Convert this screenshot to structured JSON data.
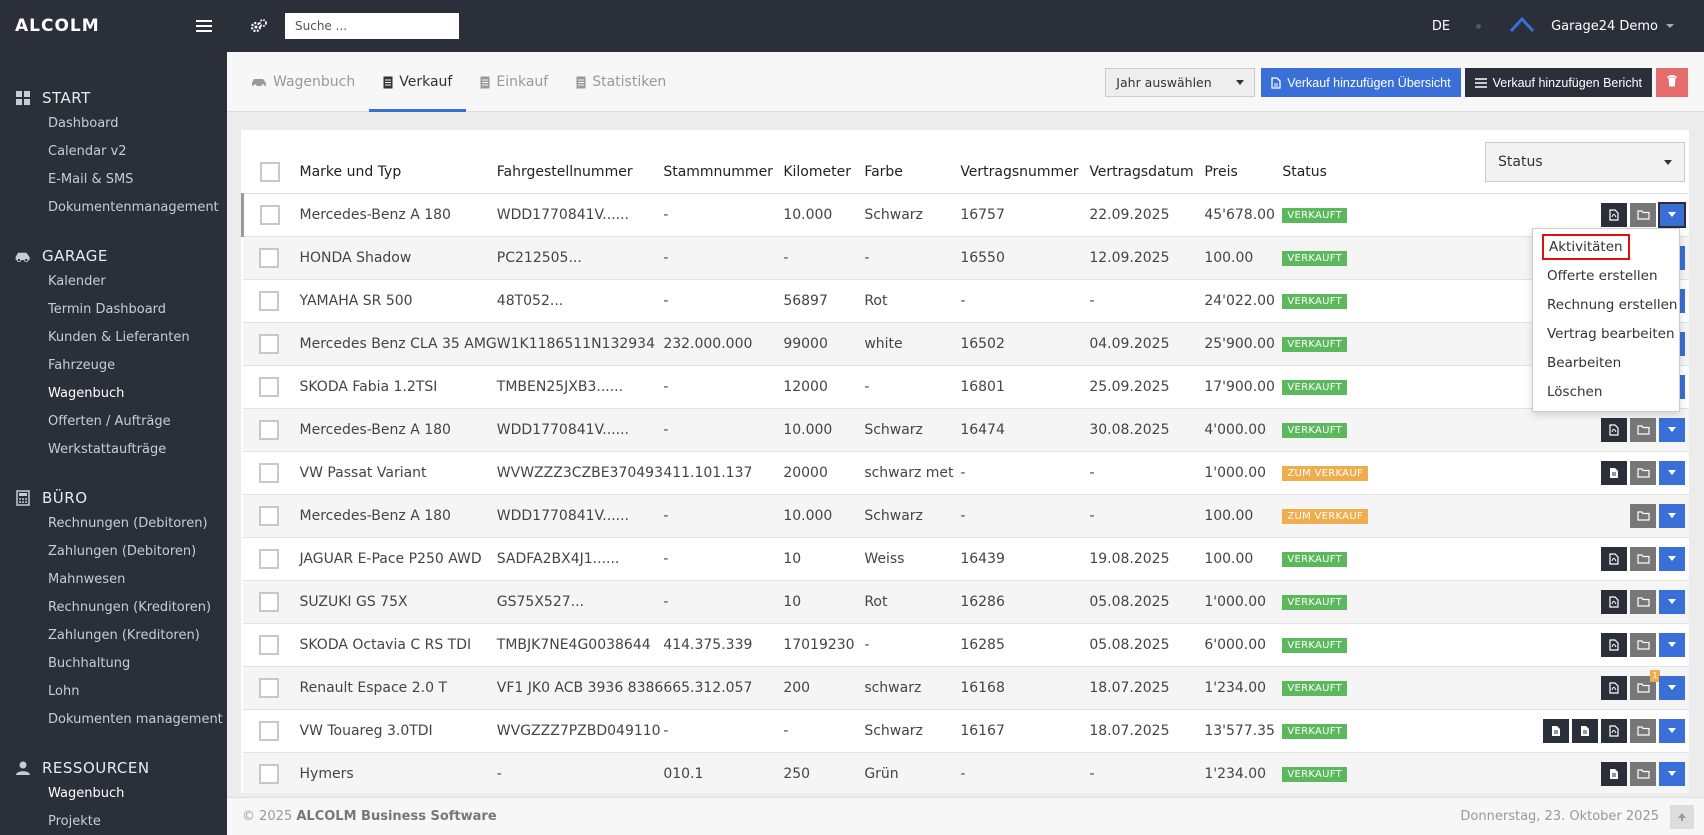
{
  "app": {
    "brand": "ALCOLM"
  },
  "topbar": {
    "search_placeholder": "Suche ...",
    "lang": "DE",
    "user": "Garage24 Demo"
  },
  "sidebar": {
    "sections": [
      {
        "title": "START",
        "icon": "grid-icon",
        "items": [
          "Dashboard",
          "Calendar v2",
          "E-Mail & SMS",
          "Dokumentenmanagement"
        ]
      },
      {
        "title": "GARAGE",
        "icon": "car-icon",
        "items": [
          "Kalender",
          "Termin Dashboard",
          "Kunden & Lieferanten",
          "Fahrzeuge",
          "Wagenbuch",
          "Offerten / Aufträge",
          "Werkstattaufträge"
        ]
      },
      {
        "title": "BÜRO",
        "icon": "calculator-icon",
        "items": [
          "Rechnungen (Debitoren)",
          "Zahlungen (Debitoren)",
          "Mahnwesen",
          "Rechnungen (Kreditoren)",
          "Zahlungen (Kreditoren)",
          "Buchhaltung",
          "Lohn",
          "Dokumenten management"
        ]
      },
      {
        "title": "RESSOURCEN",
        "icon": "user-icon",
        "items": [
          "Wagenbuch",
          "Projekte"
        ]
      }
    ]
  },
  "tabs": [
    {
      "label": "Wagenbuch",
      "icon": "car-icon"
    },
    {
      "label": "Verkauf",
      "icon": "document-icon"
    },
    {
      "label": "Einkauf",
      "icon": "document-icon"
    },
    {
      "label": "Statistiken",
      "icon": "document-icon"
    }
  ],
  "actions": {
    "year_select": "Jahr auswählen",
    "add_overview": "Verkauf hinzufügen Übersicht",
    "add_report": "Verkauf hinzufügen Bericht"
  },
  "table": {
    "status_filter": "Status",
    "columns": [
      "Marke und Typ",
      "Fahrgestellnummer",
      "Stammnummer",
      "Kilometer",
      "Farbe",
      "Vertragsnummer",
      "Vertragsdatum",
      "Preis",
      "Status"
    ],
    "rows": [
      {
        "c": [
          "Mercedes-Benz A 180",
          "WDD1770841V......",
          "-",
          "10.000",
          "Schwarz",
          "16757",
          "22.09.2025",
          "45'678.00"
        ],
        "status": "VERKAUFT",
        "color": "#5cb85c"
      },
      {
        "c": [
          "HONDA Shadow",
          "PC212505...",
          "-",
          "-",
          "-",
          "16550",
          "12.09.2025",
          "100.00"
        ],
        "status": "VERKAUFT",
        "color": "#5cb85c"
      },
      {
        "c": [
          "YAMAHA SR 500",
          "48T052...",
          "-",
          "56897",
          "Rot",
          "-",
          "-",
          "24'022.00"
        ],
        "status": "VERKAUFT",
        "color": "#5cb85c"
      },
      {
        "c": [
          "Mercedes Benz CLA 35 AMG",
          "W1K1186511N132934",
          "232.000.000",
          "99000",
          "white",
          "16502",
          "04.09.2025",
          "25'900.00"
        ],
        "status": "VERKAUFT",
        "color": "#5cb85c"
      },
      {
        "c": [
          "SKODA Fabia 1.2TSI",
          "TMBEN25JXB3......",
          "-",
          "12000",
          "-",
          "16801",
          "25.09.2025",
          "17'900.00"
        ],
        "status": "VERKAUFT",
        "color": "#5cb85c"
      },
      {
        "c": [
          "Mercedes-Benz A 180",
          "WDD1770841V......",
          "-",
          "10.000",
          "Schwarz",
          "16474",
          "30.08.2025",
          "4'000.00"
        ],
        "status": "VERKAUFT",
        "color": "#5cb85c"
      },
      {
        "c": [
          "VW Passat Variant",
          "WVWZZZ3CZBE370493",
          "411.101.137",
          "20000",
          "schwarz met",
          "-",
          "-",
          "1'000.00"
        ],
        "status": "ZUM VERKAUF",
        "color": "#f0ad4e"
      },
      {
        "c": [
          "Mercedes-Benz A 180",
          "WDD1770841V......",
          "-",
          "10.000",
          "Schwarz",
          "-",
          "-",
          "100.00"
        ],
        "status": "ZUM VERKAUF",
        "color": "#f0ad4e"
      },
      {
        "c": [
          "JAGUAR E-Pace P250 AWD",
          "SADFA2BX4J1......",
          "-",
          "10",
          "Weiss",
          "16439",
          "19.08.2025",
          "100.00"
        ],
        "status": "VERKAUFT",
        "color": "#5cb85c"
      },
      {
        "c": [
          "SUZUKI GS 75X",
          "GS75X527...",
          "-",
          "10",
          "Rot",
          "16286",
          "05.08.2025",
          "1'000.00"
        ],
        "status": "VERKAUFT",
        "color": "#5cb85c"
      },
      {
        "c": [
          "SKODA Octavia C RS TDI",
          "TMBJK7NE4G0038644",
          "414.375.339",
          "17019230",
          "-",
          "16285",
          "05.08.2025",
          "6'000.00"
        ],
        "status": "VERKAUFT",
        "color": "#5cb85c"
      },
      {
        "c": [
          "Renault Espace 2.0 T",
          "VF1 JK0 ACB 3936 8386",
          "665.312.057",
          "200",
          "schwarz",
          "16168",
          "18.07.2025",
          "1'234.00"
        ],
        "status": "VERKAUFT",
        "color": "#5cb85c"
      },
      {
        "c": [
          "VW Touareg 3.0TDI",
          "WVGZZZ7PZBD049110",
          "-",
          "-",
          "Schwarz",
          "16167",
          "18.07.2025",
          "13'577.35"
        ],
        "status": "VERKAUFT",
        "color": "#5cb85c"
      },
      {
        "c": [
          "Hymers",
          "-",
          "010.1",
          "250",
          "Grün",
          "-",
          "-",
          "1'234.00"
        ],
        "status": "VERKAUFT",
        "color": "#5cb85c"
      }
    ]
  },
  "dropdown": {
    "items": [
      "Aktivitäten",
      "Offerte erstellen",
      "Rechnung erstellen",
      "Vertrag bearbeiten",
      "Bearbeiten",
      "Löschen"
    ]
  },
  "footer": {
    "copyright": "© 2025",
    "company": "ALCOLM Business Software",
    "date": "Donnerstag, 23. Oktober 2025"
  }
}
